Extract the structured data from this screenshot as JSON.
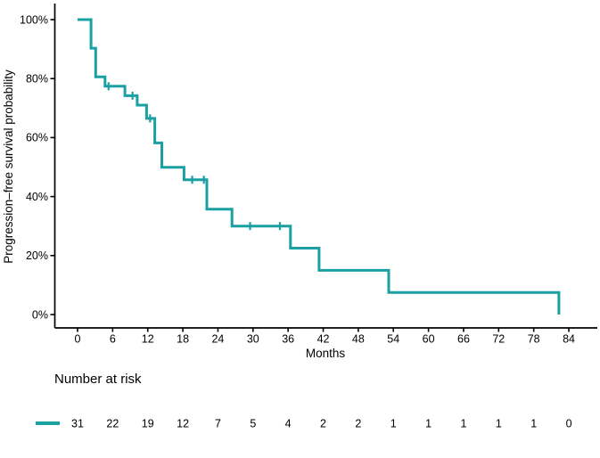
{
  "figure": {
    "background_color": "#ffffff",
    "accent_color": "#1AA0A2",
    "axis_color": "#000000",
    "text_color": "#000000"
  },
  "chart_data": {
    "type": "line",
    "subtype": "kaplan-meier-step-curve",
    "title": "",
    "xlabel": "Months",
    "ylabel": "Progression–free survival probability",
    "xlim": [
      0,
      84
    ],
    "ylim_pct": [
      0,
      100
    ],
    "grid": false,
    "legend_position": "none",
    "x_ticks": [
      0,
      6,
      12,
      18,
      24,
      30,
      36,
      42,
      48,
      54,
      60,
      66,
      72,
      78,
      84
    ],
    "y_ticks_pct": [
      0,
      20,
      40,
      60,
      80,
      100
    ],
    "y_tick_labels": [
      "0%",
      "20%",
      "40%",
      "60%",
      "80%",
      "100%"
    ],
    "series": [
      {
        "color": "#1AA0A2",
        "survival_steps_month_pct": [
          [
            0,
            100
          ],
          [
            2.3,
            90.3
          ],
          [
            3.1,
            80.6
          ],
          [
            4.7,
            77.4
          ],
          [
            8.1,
            74.2
          ],
          [
            10.2,
            71.0
          ],
          [
            11.8,
            66.5
          ],
          [
            13.2,
            58.2
          ],
          [
            14.4,
            49.9
          ],
          [
            18.2,
            45.7
          ],
          [
            22.1,
            35.7
          ],
          [
            26.4,
            30.0
          ],
          [
            36.4,
            22.5
          ],
          [
            41.3,
            15.0
          ],
          [
            53.2,
            7.5
          ],
          [
            82.3,
            0
          ]
        ],
        "censor_marks_month_pct": [
          [
            5.3,
            77.4
          ],
          [
            9.4,
            74.2
          ],
          [
            12.4,
            66.5
          ],
          [
            19.6,
            45.7
          ],
          [
            21.6,
            45.7
          ],
          [
            29.5,
            30.0
          ],
          [
            34.6,
            30.0
          ]
        ]
      }
    ],
    "risk_table": {
      "header": "Number at risk",
      "months": [
        0,
        6,
        12,
        18,
        24,
        30,
        36,
        42,
        48,
        54,
        60,
        66,
        72,
        78,
        84
      ],
      "counts": [
        31,
        22,
        19,
        12,
        7,
        5,
        4,
        2,
        2,
        1,
        1,
        1,
        1,
        1,
        0
      ]
    }
  }
}
